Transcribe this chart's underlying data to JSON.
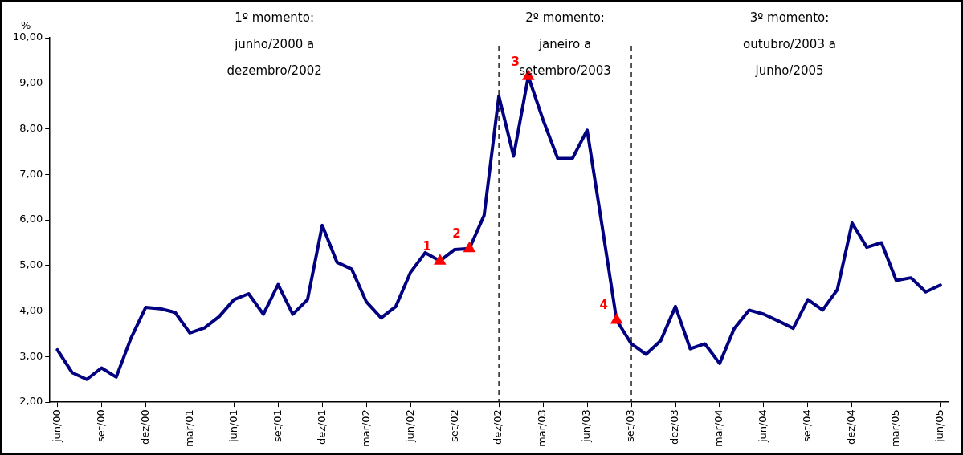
{
  "chart_data": {
    "type": "line",
    "ylabel": "%",
    "categories": [
      "jun/00",
      null,
      null,
      "set/00",
      null,
      null,
      "dez/00",
      null,
      null,
      "mar/01",
      null,
      null,
      "jun/01",
      null,
      null,
      "set/01",
      null,
      null,
      "dez/01",
      null,
      null,
      "mar/02",
      null,
      null,
      "jun/02",
      null,
      null,
      "set/02",
      null,
      null,
      "dez/02",
      null,
      null,
      "mar/03",
      null,
      null,
      "jun/03",
      null,
      null,
      "set/03",
      null,
      null,
      "dez/03",
      null,
      null,
      "mar/04",
      null,
      null,
      "jun/04",
      null,
      null,
      "set/04",
      null,
      null,
      "dez/04",
      null,
      null,
      "mar/05",
      null,
      null,
      "jun/05"
    ],
    "series": [
      {
        "color": "#000080",
        "marker": "none",
        "line_style": "solid",
        "values": [
          3.15,
          2.65,
          2.5,
          2.75,
          2.55,
          3.4,
          4.08,
          4.05,
          3.97,
          3.52,
          3.63,
          3.88,
          4.25,
          4.38,
          3.93,
          4.58,
          3.93,
          4.25,
          5.88,
          5.07,
          4.92,
          4.2,
          3.85,
          4.1,
          4.85,
          5.28,
          5.1,
          5.35,
          5.37,
          6.1,
          8.72,
          7.4,
          9.15,
          8.2,
          7.35,
          7.35,
          7.97,
          5.9,
          3.8,
          3.28,
          3.05,
          3.35,
          4.1,
          3.17,
          3.28,
          2.85,
          3.62,
          4.02,
          3.93,
          3.78,
          3.62,
          4.25,
          4.02,
          4.47,
          5.93,
          5.4,
          5.5,
          4.67,
          4.73,
          4.42,
          4.57
        ]
      },
      {
        "type": "scatter",
        "color": "#ff0000",
        "marker": "triangle",
        "values": [
          null,
          null,
          null,
          null,
          null,
          null,
          null,
          null,
          null,
          null,
          null,
          null,
          null,
          null,
          null,
          null,
          null,
          null,
          null,
          null,
          null,
          null,
          null,
          null,
          null,
          null,
          5.1,
          null,
          5.37,
          null,
          null,
          null,
          9.15,
          null,
          null,
          null,
          null,
          null,
          3.8,
          null,
          null,
          null,
          null,
          null,
          null,
          null,
          null,
          null,
          null,
          null,
          null,
          null,
          null,
          null,
          null,
          null,
          null,
          null,
          null,
          null,
          null
        ],
        "name": null
      }
    ],
    "ylim": [
      2,
      10
    ],
    "yticks": [
      {
        "value": 2,
        "label": "2,00"
      },
      {
        "value": 3,
        "label": "3,00"
      },
      {
        "value": 4,
        "label": "4,00"
      },
      {
        "value": 5,
        "label": "5,00"
      },
      {
        "value": 6,
        "label": "6,00"
      },
      {
        "value": 7,
        "label": "7,00"
      },
      {
        "value": 8,
        "label": "8,00"
      },
      {
        "value": 9,
        "label": "9,00"
      },
      {
        "value": 10,
        "label": "10,00"
      }
    ],
    "ref_lines": [
      {
        "axis": "x",
        "value": "dez/02",
        "color": "#000000",
        "line_style": "dashed"
      },
      {
        "axis": "x",
        "value": "set/03",
        "color": "#000000",
        "line_style": "dashed"
      }
    ],
    "annotations": [
      "1º momento:\njunho/2000 a\ndezembro/2002",
      "2º momento:\njaneiro a\nsetembro/2003",
      "3º momento:\noutubro/2003 a\njunho/2005",
      "1",
      "2",
      "3",
      "4"
    ],
    "grid": false,
    "legend": false
  }
}
